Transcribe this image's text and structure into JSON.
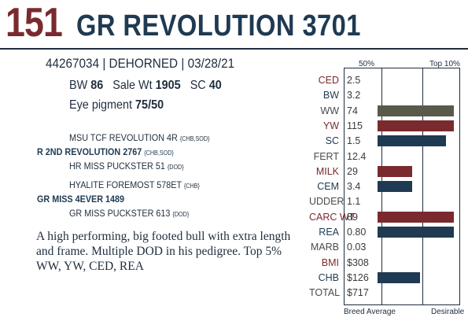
{
  "lot_number": "151",
  "animal_name": "GR REVOLUTION 3701",
  "id_line": "44267034 | DEHORNED | 03/28/21",
  "stats": {
    "bw_label": "BW",
    "bw": "86",
    "sale_wt_label": "Sale Wt",
    "sale_wt": "1905",
    "sc_label": "SC",
    "sc": "40"
  },
  "eye": {
    "label": "Eye pigment",
    "value": "75/50"
  },
  "pedigree": [
    {
      "name": "MSU TCF REVOLUTION 4R",
      "tag": "{CHB,SOD}"
    },
    {
      "name": "R 2ND REVOLUTION 2767",
      "tag": "{CHB,SOD}"
    },
    {
      "name": "HR MISS PUCKSTER 51",
      "tag": "{DOD}"
    },
    {
      "name": "HYALITE FOREMOST 578ET",
      "tag": "{CHB}"
    },
    {
      "name": "GR MISS 4EVER 1489",
      "tag": ""
    },
    {
      "name": "GR MISS PUCKSTER 613",
      "tag": "{DOD}"
    }
  ],
  "description": "A high performing, big footed bull with extra length and frame. Multiple DOD in his pedigree. Top 5% WW, YW, CED, REA",
  "chart": {
    "top_left": "50%",
    "top_right": "Top 10%",
    "bottom_left": "Breed Average",
    "bottom_right": "Desirable",
    "colors": {
      "maroon": "#7a2a2e",
      "navy": "#1f3a52",
      "olive": "#5a5a4a",
      "label_gray": "#4a4a4a"
    }
  },
  "chart_data": {
    "type": "bar",
    "categories": [
      "CED",
      "BW",
      "WW",
      "YW",
      "SC",
      "FERT",
      "MILK",
      "CEM",
      "UDDER",
      "CARC WT",
      "REA",
      "MARB",
      "BMI",
      "CHB",
      "TOTAL"
    ],
    "value_labels": [
      "2.5",
      "3.2",
      "74",
      "115",
      "1.5",
      "12.4",
      "29",
      "3.4",
      "1.1",
      "89",
      "0.80",
      "0.03",
      "$308",
      "$126",
      "$717"
    ],
    "bar_fraction": [
      0,
      0,
      0.96,
      0.96,
      0.86,
      0,
      0.44,
      0.44,
      0,
      0.96,
      0.96,
      0,
      0,
      0.53,
      0
    ],
    "label_color": [
      "maroon",
      "navy",
      "gray",
      "maroon",
      "navy",
      "gray",
      "maroon",
      "navy",
      "gray",
      "maroon",
      "navy",
      "gray",
      "maroon",
      "navy",
      "gray"
    ],
    "bar_color": [
      "",
      "",
      "olive",
      "maroon",
      "navy",
      "",
      "maroon",
      "navy",
      "",
      "maroon",
      "navy",
      "",
      "",
      "navy",
      ""
    ]
  }
}
